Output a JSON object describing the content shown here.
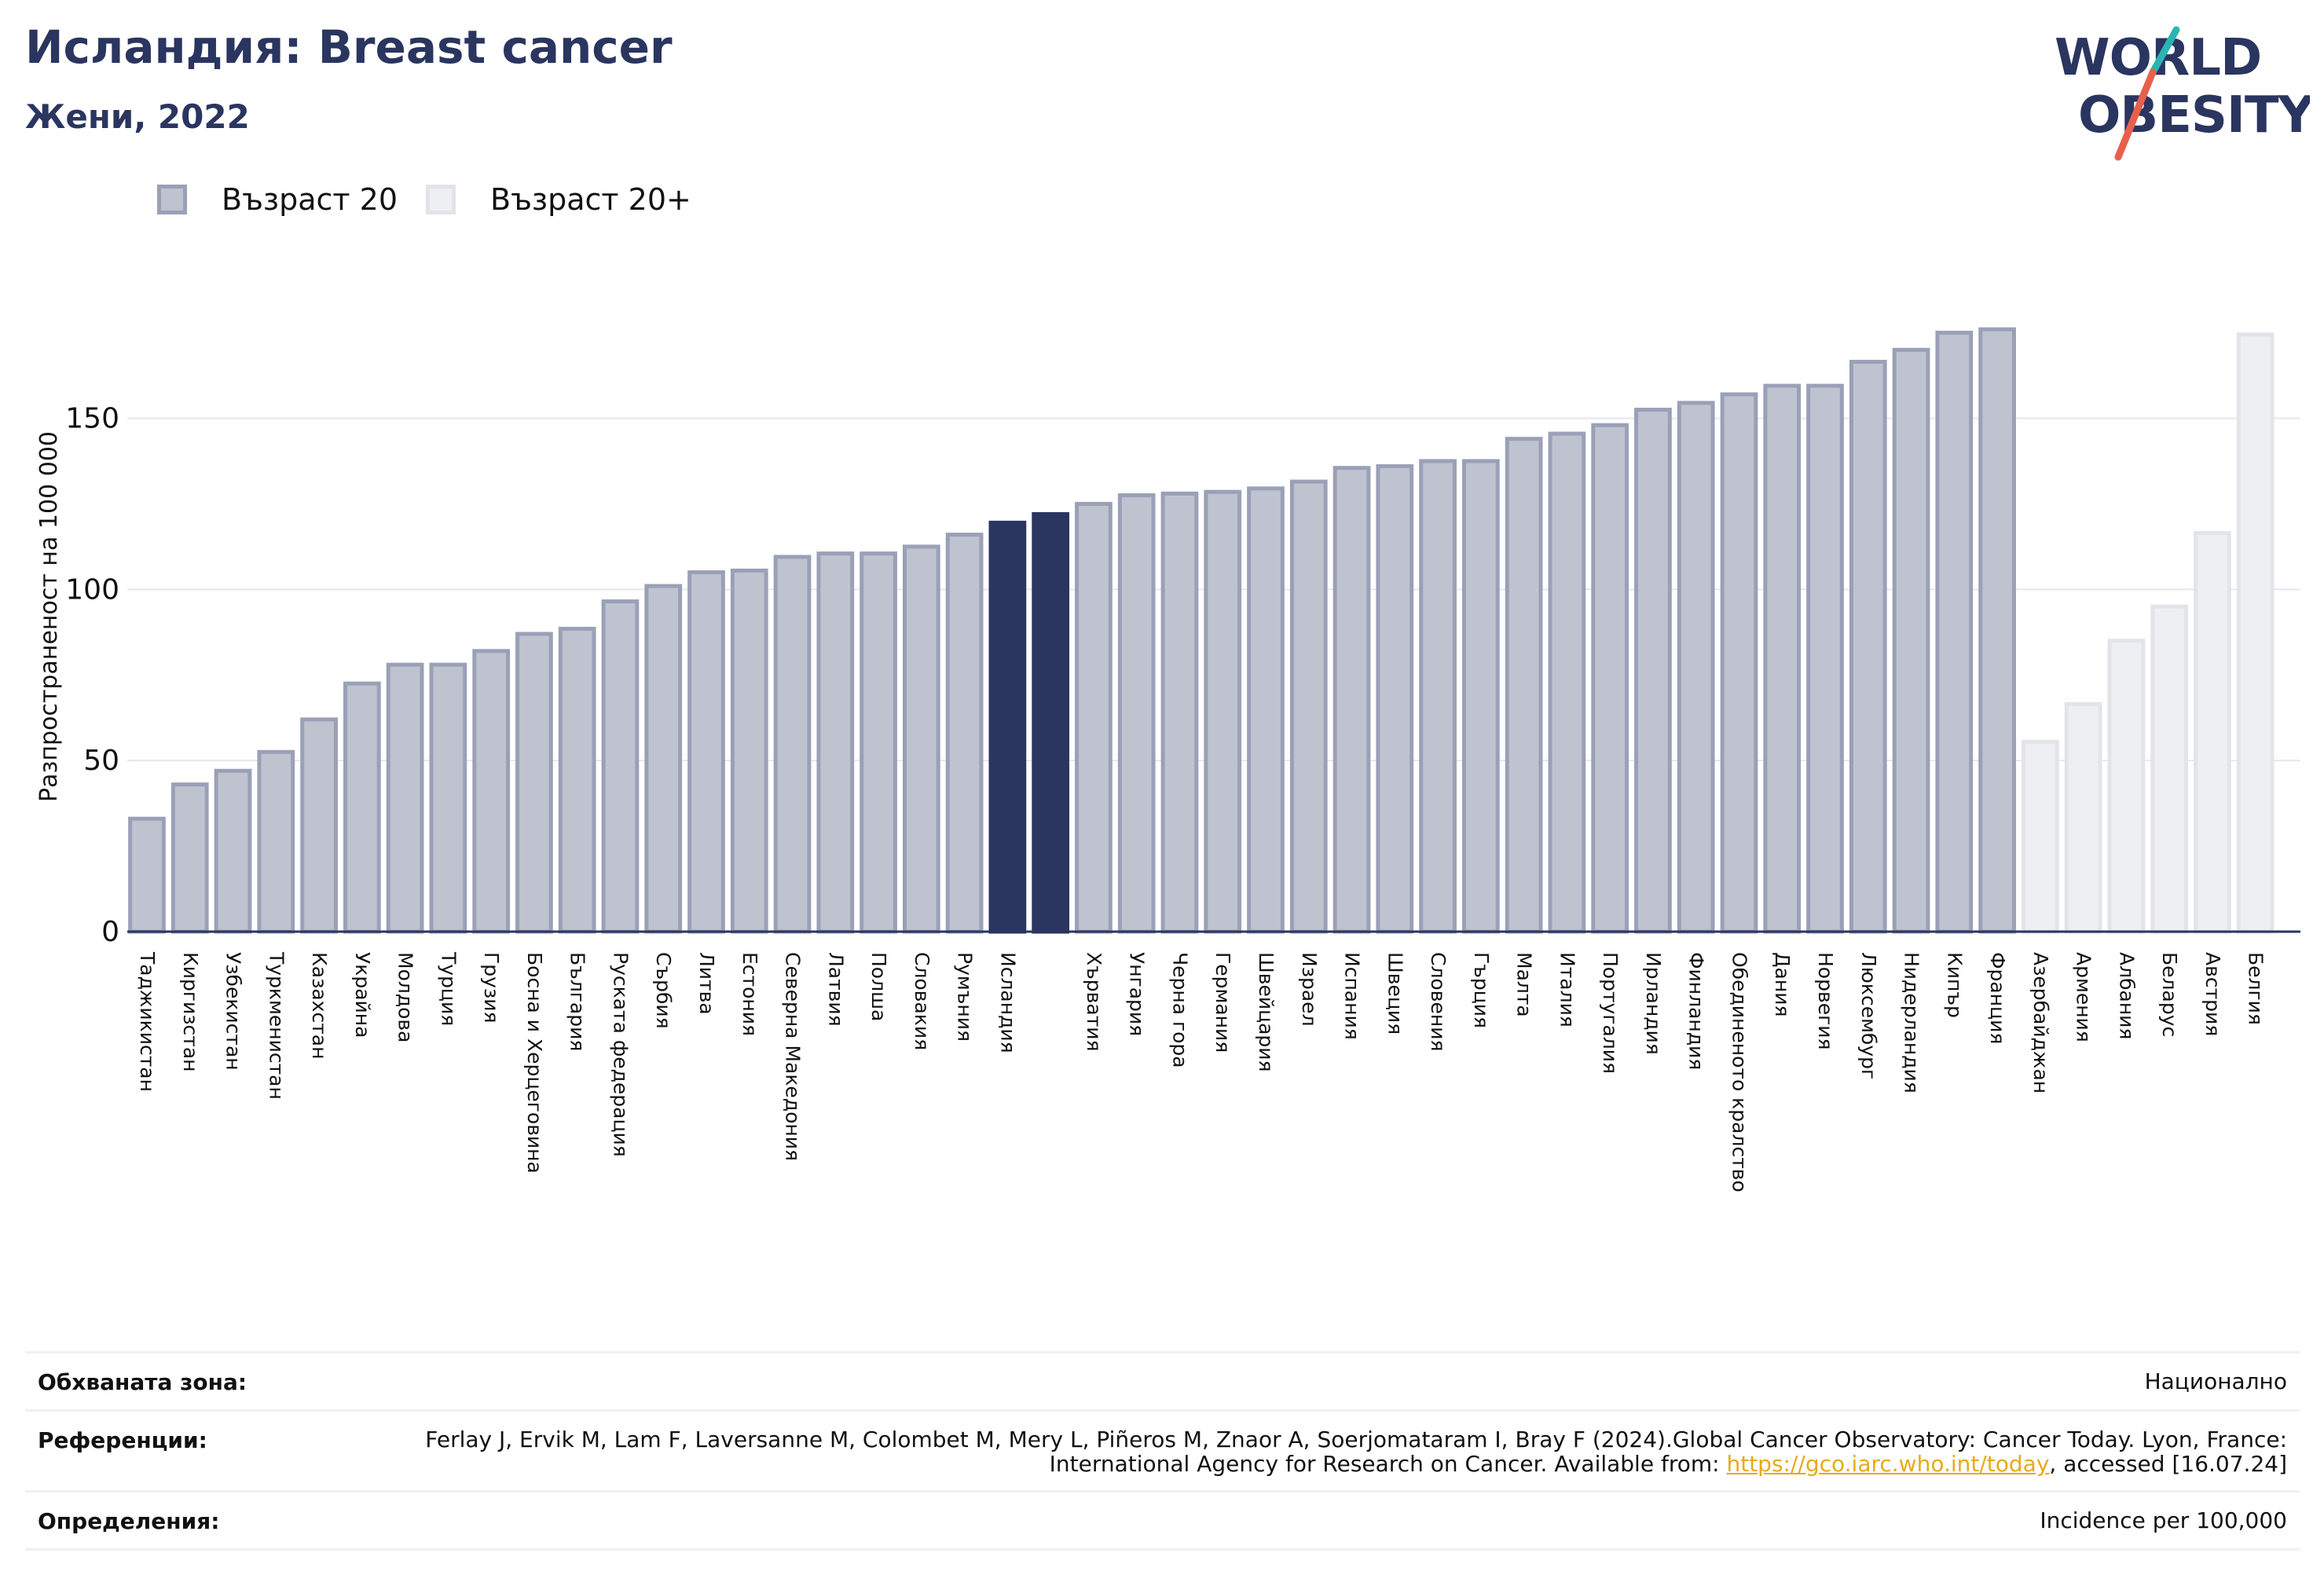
{
  "header": {
    "title": "Исландия: Breast cancer",
    "subtitle": "Жени, 2022"
  },
  "logo": {
    "line1": "WORLD",
    "line2": "OBESITY",
    "colors": {
      "text": "#2a3560",
      "slash_top": "#2bb5b0",
      "slash_bottom": "#e8604c"
    }
  },
  "legend": {
    "items": [
      {
        "label": "Възраст 20",
        "color": "#bfc3d0"
      },
      {
        "label": "Възраст 20+",
        "color": "#eeeff3"
      }
    ]
  },
  "chart_data": {
    "type": "bar",
    "ylabel": "Разпространеност на 100 000",
    "ylim": [
      0,
      185
    ],
    "yticks": [
      0,
      50,
      100,
      150
    ],
    "grid": true,
    "colors": {
      "age20": "#bfc3d0",
      "age20_border": "#9aa0b6",
      "age20plus": "#eeeff3",
      "age20plus_border": "#e3e4ea",
      "highlight": "#2a3560"
    },
    "categories": [
      "Таджикистан",
      "Киргизстан",
      "Узбекистан",
      "Туркменистан",
      "Казахстан",
      "Украйна",
      "Молдова",
      "Турция",
      "Грузия",
      "Босна и Херцеговина",
      "България",
      "Руската федерация",
      "Сърбия",
      "Литва",
      "Естония",
      "Северна Македония",
      "Латвия",
      "Полша",
      "Словакия",
      "Румъния",
      "Исландия",
      "",
      "Хърватия",
      "Унгария",
      "Черна гора",
      "Германия",
      "Швейцария",
      "Израел",
      "Испания",
      "Швеция",
      "Словения",
      "Гърция",
      "Малта",
      "Италия",
      "Португалия",
      "Ирландия",
      "Финландия",
      "Обединеното кралство",
      "Дания",
      "Норвегия",
      "Люксембург",
      "Нидерландия",
      "Кипър",
      "Франция",
      "Азербайджан",
      "Армения",
      "Албания",
      "Беларус",
      "Австрия",
      "Белгия"
    ],
    "values": [
      33,
      43,
      47,
      52.5,
      62,
      72.5,
      78,
      78,
      82,
      87,
      88.5,
      96.5,
      101,
      105,
      105.5,
      109.5,
      110.5,
      110.5,
      112.5,
      116,
      119.5,
      122,
      125,
      127.5,
      128,
      128.5,
      129.5,
      131.5,
      135.5,
      136,
      137.5,
      137.5,
      144,
      145.5,
      148,
      152.5,
      154.5,
      157,
      159.5,
      159.5,
      166.5,
      170,
      175,
      176,
      55.5,
      66.5,
      85,
      95,
      116.5,
      174.5
    ],
    "groups": [
      "age20",
      "age20",
      "age20",
      "age20",
      "age20",
      "age20",
      "age20",
      "age20",
      "age20",
      "age20",
      "age20",
      "age20",
      "age20",
      "age20",
      "age20",
      "age20",
      "age20",
      "age20",
      "age20",
      "age20",
      "highlight",
      "highlight",
      "age20",
      "age20",
      "age20",
      "age20",
      "age20",
      "age20",
      "age20",
      "age20",
      "age20",
      "age20",
      "age20",
      "age20",
      "age20",
      "age20",
      "age20",
      "age20",
      "age20",
      "age20",
      "age20",
      "age20",
      "age20",
      "age20",
      "age20plus",
      "age20plus",
      "age20plus",
      "age20plus",
      "age20plus",
      "age20plus"
    ]
  },
  "footer": {
    "coverage_label": "Обхваната зона:",
    "coverage_value": "Национално",
    "references_label": "Референции:",
    "references_text": "Ferlay J, Ervik M, Lam F, Laversanne M, Colombet M, Mery L, Piñeros M, Znaor A, Soerjomataram I, Bray F (2024).Global Cancer Observatory: Cancer Today. Lyon, France: International Agency for Research on Cancer. Available from: ",
    "references_link": "https://gco.iarc.who.int/today",
    "references_suffix": ", accessed [16.07.24]",
    "definitions_label": "Определения:",
    "definitions_value": "Incidence per 100,000"
  }
}
